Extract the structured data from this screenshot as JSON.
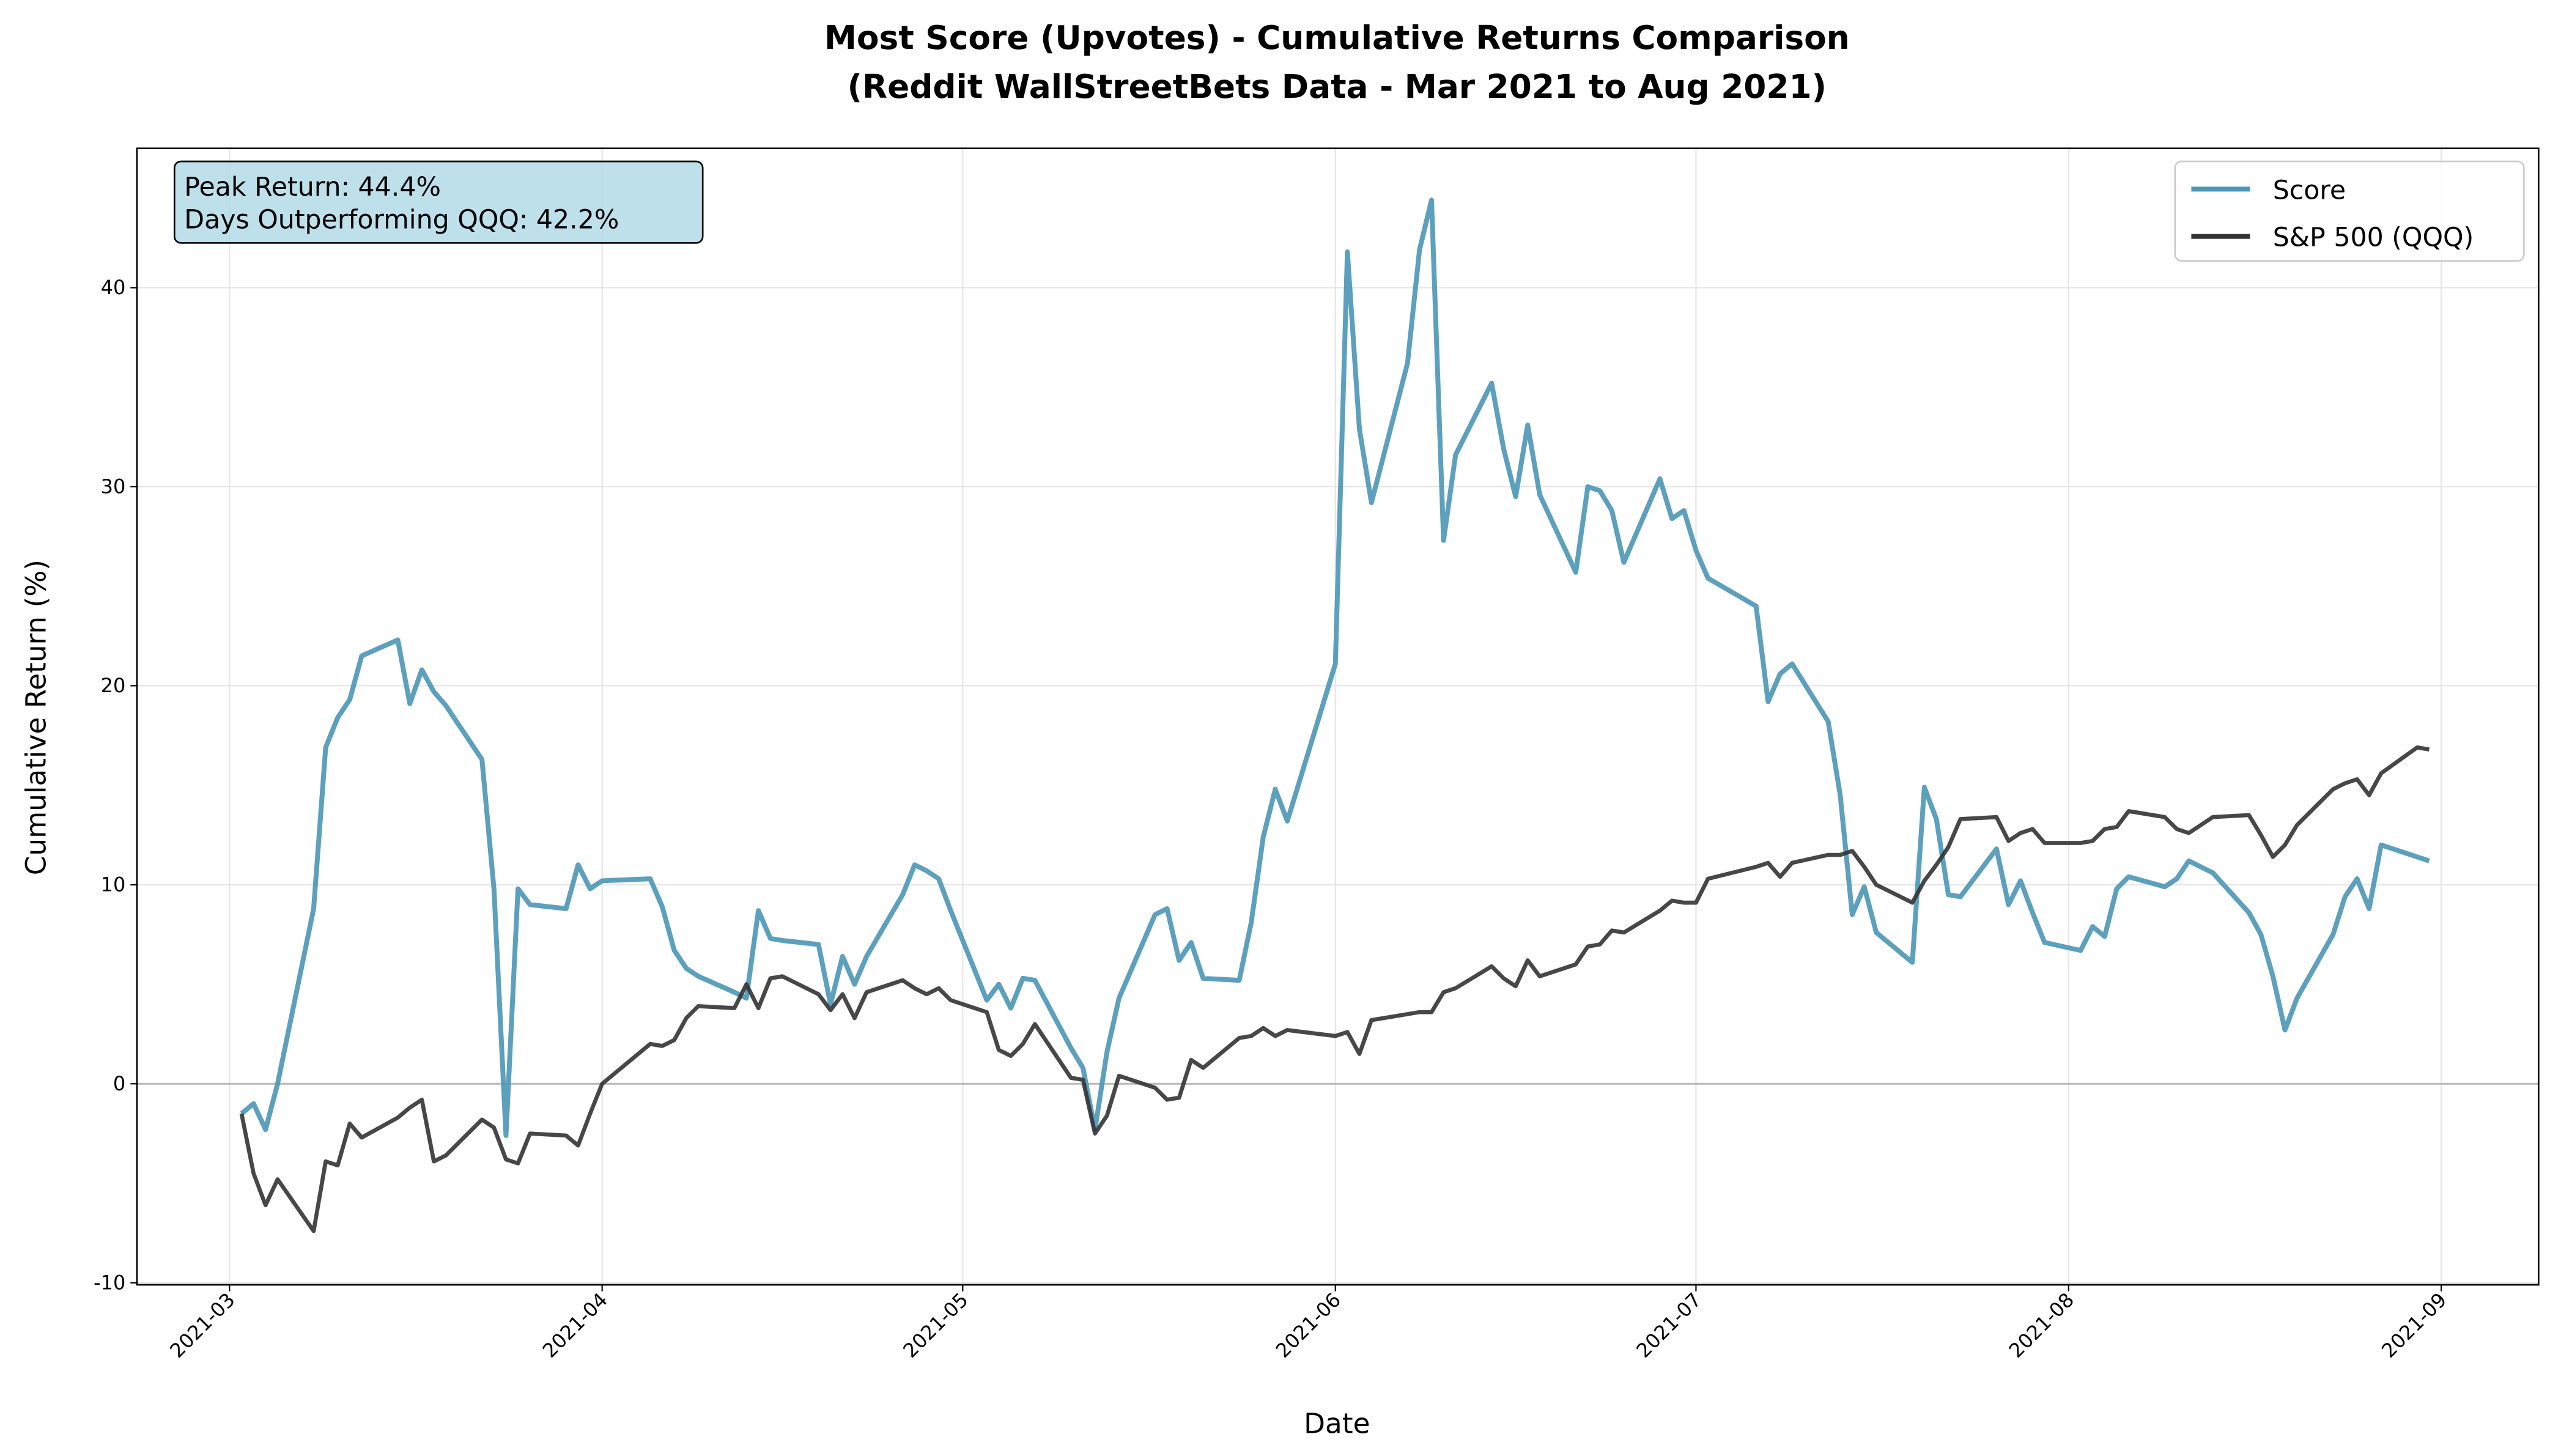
{
  "chart_data": {
    "type": "line",
    "title": "Most Score (Upvotes) - Cumulative Returns Comparison",
    "subtitle": "(Reddit WallStreetBets Data - Mar 2021 to Aug 2021)",
    "x_label": "Date",
    "y_label": "Cumulative Return (%)",
    "annotations": [
      "Peak Return: 44.4%",
      "Days Outperforming QQQ: 42.2%"
    ],
    "x": [
      1,
      2,
      3,
      4,
      7,
      8,
      9,
      10,
      11,
      14,
      15,
      16,
      17,
      18,
      21,
      22,
      23,
      24,
      25,
      28,
      29,
      30,
      31,
      35,
      36,
      37,
      38,
      39,
      42,
      43,
      44,
      45,
      46,
      49,
      50,
      51,
      52,
      53,
      56,
      57,
      58,
      59,
      60,
      63,
      64,
      65,
      66,
      67,
      70,
      71,
      72,
      73,
      74,
      77,
      78,
      79,
      80,
      81,
      84,
      85,
      86,
      87,
      88,
      92,
      93,
      94,
      95,
      98,
      99,
      100,
      101,
      102,
      105,
      106,
      107,
      108,
      109,
      112,
      113,
      114,
      115,
      116,
      119,
      120,
      121,
      122,
      123,
      127,
      128,
      129,
      130,
      133,
      134,
      135,
      136,
      137,
      140,
      141,
      142,
      143,
      144,
      147,
      148,
      149,
      150,
      151,
      154,
      155,
      156,
      157,
      158,
      161,
      162,
      163,
      164,
      165,
      168,
      169,
      170,
      171,
      172,
      175,
      176,
      177,
      178,
      179,
      182,
      183
    ],
    "series": [
      {
        "name": "Score",
        "color": "#4a96b6",
        "values": [
          -1.5,
          -1.0,
          -2.3,
          0,
          8.8,
          16.9,
          18.4,
          19.3,
          21.5,
          22.3,
          19.1,
          20.8,
          19.7,
          19.0,
          16.3,
          9.8,
          -2.6,
          9.8,
          9.0,
          8.8,
          11.0,
          9.8,
          10.2,
          10.3,
          8.9,
          6.7,
          5.8,
          5.4,
          4.6,
          4.3,
          8.7,
          7.3,
          7.2,
          7.0,
          4.0,
          6.4,
          5.0,
          6.4,
          9.5,
          11.0,
          10.7,
          10.3,
          8.7,
          4.2,
          5.0,
          3.8,
          5.3,
          5.2,
          1.8,
          0.8,
          -2.3,
          1.6,
          4.3,
          8.5,
          8.8,
          6.2,
          7.1,
          5.3,
          5.2,
          8.1,
          12.4,
          14.8,
          13.2,
          21.1,
          41.8,
          32.9,
          29.2,
          36.2,
          41.9,
          44.4,
          27.3,
          31.6,
          35.2,
          31.9,
          29.5,
          33.1,
          29.6,
          25.7,
          30.0,
          29.8,
          28.8,
          26.2,
          30.4,
          28.4,
          28.8,
          26.8,
          25.4,
          24.0,
          19.2,
          20.6,
          21.1,
          18.2,
          14.5,
          8.5,
          9.9,
          7.6,
          6.1,
          14.9,
          13.3,
          9.5,
          9.4,
          11.8,
          9.0,
          10.2,
          8.6,
          7.1,
          6.7,
          7.9,
          7.4,
          9.8,
          10.4,
          9.9,
          10.3,
          11.2,
          10.9,
          10.6,
          8.6,
          7.5,
          5.4,
          2.7,
          4.3,
          7.5,
          9.4,
          10.3,
          8.8,
          12.0,
          11.4,
          11.2
        ]
      },
      {
        "name": "S&P 500 (QQQ)",
        "color": "#333333",
        "values": [
          -1.5,
          -4.5,
          -6.1,
          -4.8,
          -7.4,
          -3.9,
          -4.1,
          -2.0,
          -2.7,
          -1.7,
          -1.2,
          -0.8,
          -3.9,
          -3.6,
          -1.8,
          -2.2,
          -3.8,
          -4.0,
          -2.5,
          -2.6,
          -3.1,
          -1.5,
          0.0,
          2.0,
          1.9,
          2.2,
          3.3,
          3.9,
          3.8,
          5.0,
          3.8,
          5.3,
          5.4,
          4.5,
          3.7,
          4.5,
          3.3,
          4.6,
          5.2,
          4.8,
          4.5,
          4.8,
          4.2,
          3.6,
          1.7,
          1.4,
          2.0,
          3.0,
          0.3,
          0.2,
          -2.5,
          -1.6,
          0.4,
          -0.2,
          -0.8,
          -0.7,
          1.2,
          0.8,
          2.3,
          2.4,
          2.8,
          2.4,
          2.7,
          2.4,
          2.6,
          1.5,
          3.2,
          3.5,
          3.6,
          3.6,
          4.6,
          4.8,
          5.9,
          5.3,
          4.9,
          6.2,
          5.4,
          6.0,
          6.9,
          7.0,
          7.7,
          7.6,
          8.7,
          9.2,
          9.1,
          9.1,
          10.3,
          10.9,
          11.1,
          10.4,
          11.1,
          11.5,
          11.5,
          11.7,
          10.9,
          10.0,
          9.1,
          10.2,
          11.0,
          11.9,
          13.3,
          13.4,
          12.2,
          12.6,
          12.8,
          12.1,
          12.1,
          12.2,
          12.8,
          12.9,
          13.7,
          13.4,
          12.8,
          12.6,
          13.0,
          13.4,
          13.5,
          12.5,
          11.4,
          12.0,
          13.0,
          14.8,
          15.1,
          15.3,
          14.5,
          15.6,
          16.9,
          16.8
        ]
      }
    ],
    "xlim": [
      -7.7,
      192.1
    ],
    "xticks": [
      {
        "value": 0,
        "label": "2021-03"
      },
      {
        "value": 31,
        "label": "2021-04"
      },
      {
        "value": 61,
        "label": "2021-05"
      },
      {
        "value": 92,
        "label": "2021-06"
      },
      {
        "value": 122,
        "label": "2021-07"
      },
      {
        "value": 153,
        "label": "2021-08"
      },
      {
        "value": 184,
        "label": "2021-09"
      }
    ],
    "ylim": [
      -10.1,
      47
    ],
    "yticks": [
      -10,
      0,
      10,
      20,
      30,
      40
    ],
    "grid": true,
    "legend": "upper right"
  }
}
